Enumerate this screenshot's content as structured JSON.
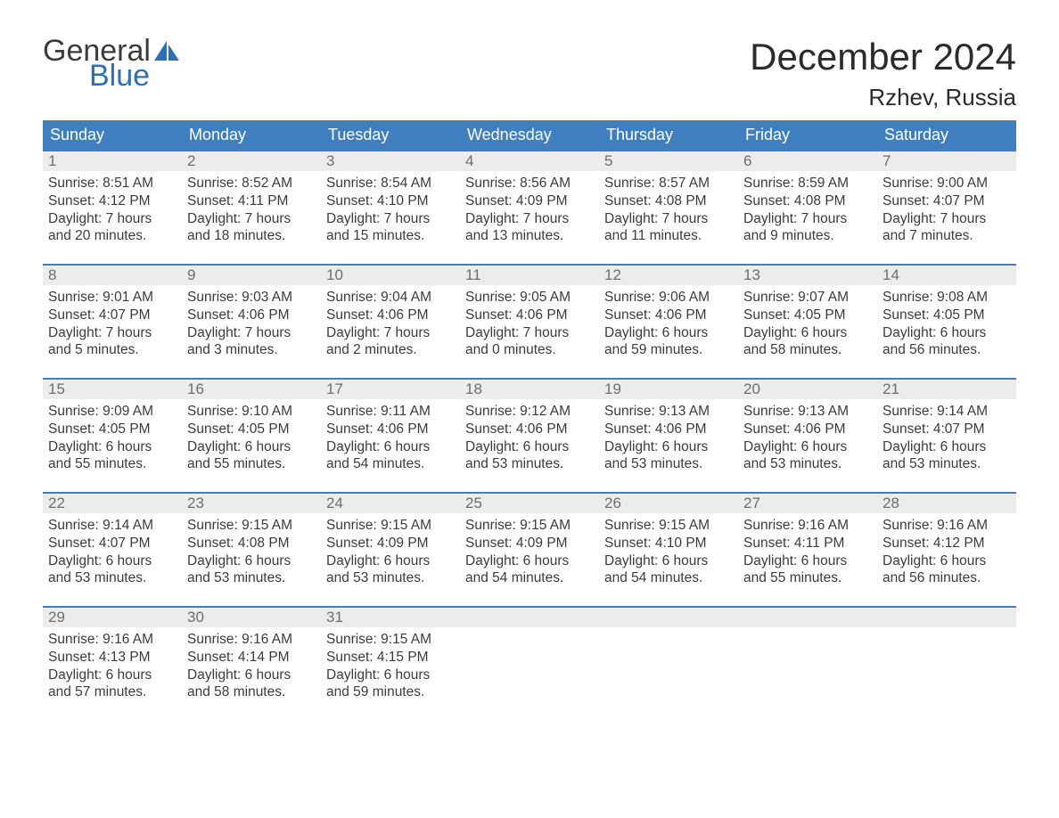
{
  "logo": {
    "general": "General",
    "blue": "Blue"
  },
  "title": "December 2024",
  "location": "Rzhev, Russia",
  "colors": {
    "header_bg": "#3f7fbf",
    "header_text": "#ffffff",
    "daynum_bg": "#ececec",
    "daynum_border": "#3f7fbf",
    "daynum_text": "#6d6d6d",
    "body_text": "#3b3b3b",
    "logo_blue": "#2d6fb5",
    "page_bg": "#ffffff"
  },
  "weekdays": [
    "Sunday",
    "Monday",
    "Tuesday",
    "Wednesday",
    "Thursday",
    "Friday",
    "Saturday"
  ],
  "weeks": [
    [
      {
        "n": "1",
        "sunrise": "Sunrise: 8:51 AM",
        "sunset": "Sunset: 4:12 PM",
        "d1": "Daylight: 7 hours",
        "d2": "and 20 minutes."
      },
      {
        "n": "2",
        "sunrise": "Sunrise: 8:52 AM",
        "sunset": "Sunset: 4:11 PM",
        "d1": "Daylight: 7 hours",
        "d2": "and 18 minutes."
      },
      {
        "n": "3",
        "sunrise": "Sunrise: 8:54 AM",
        "sunset": "Sunset: 4:10 PM",
        "d1": "Daylight: 7 hours",
        "d2": "and 15 minutes."
      },
      {
        "n": "4",
        "sunrise": "Sunrise: 8:56 AM",
        "sunset": "Sunset: 4:09 PM",
        "d1": "Daylight: 7 hours",
        "d2": "and 13 minutes."
      },
      {
        "n": "5",
        "sunrise": "Sunrise: 8:57 AM",
        "sunset": "Sunset: 4:08 PM",
        "d1": "Daylight: 7 hours",
        "d2": "and 11 minutes."
      },
      {
        "n": "6",
        "sunrise": "Sunrise: 8:59 AM",
        "sunset": "Sunset: 4:08 PM",
        "d1": "Daylight: 7 hours",
        "d2": "and 9 minutes."
      },
      {
        "n": "7",
        "sunrise": "Sunrise: 9:00 AM",
        "sunset": "Sunset: 4:07 PM",
        "d1": "Daylight: 7 hours",
        "d2": "and 7 minutes."
      }
    ],
    [
      {
        "n": "8",
        "sunrise": "Sunrise: 9:01 AM",
        "sunset": "Sunset: 4:07 PM",
        "d1": "Daylight: 7 hours",
        "d2": "and 5 minutes."
      },
      {
        "n": "9",
        "sunrise": "Sunrise: 9:03 AM",
        "sunset": "Sunset: 4:06 PM",
        "d1": "Daylight: 7 hours",
        "d2": "and 3 minutes."
      },
      {
        "n": "10",
        "sunrise": "Sunrise: 9:04 AM",
        "sunset": "Sunset: 4:06 PM",
        "d1": "Daylight: 7 hours",
        "d2": "and 2 minutes."
      },
      {
        "n": "11",
        "sunrise": "Sunrise: 9:05 AM",
        "sunset": "Sunset: 4:06 PM",
        "d1": "Daylight: 7 hours",
        "d2": "and 0 minutes."
      },
      {
        "n": "12",
        "sunrise": "Sunrise: 9:06 AM",
        "sunset": "Sunset: 4:06 PM",
        "d1": "Daylight: 6 hours",
        "d2": "and 59 minutes."
      },
      {
        "n": "13",
        "sunrise": "Sunrise: 9:07 AM",
        "sunset": "Sunset: 4:05 PM",
        "d1": "Daylight: 6 hours",
        "d2": "and 58 minutes."
      },
      {
        "n": "14",
        "sunrise": "Sunrise: 9:08 AM",
        "sunset": "Sunset: 4:05 PM",
        "d1": "Daylight: 6 hours",
        "d2": "and 56 minutes."
      }
    ],
    [
      {
        "n": "15",
        "sunrise": "Sunrise: 9:09 AM",
        "sunset": "Sunset: 4:05 PM",
        "d1": "Daylight: 6 hours",
        "d2": "and 55 minutes."
      },
      {
        "n": "16",
        "sunrise": "Sunrise: 9:10 AM",
        "sunset": "Sunset: 4:05 PM",
        "d1": "Daylight: 6 hours",
        "d2": "and 55 minutes."
      },
      {
        "n": "17",
        "sunrise": "Sunrise: 9:11 AM",
        "sunset": "Sunset: 4:06 PM",
        "d1": "Daylight: 6 hours",
        "d2": "and 54 minutes."
      },
      {
        "n": "18",
        "sunrise": "Sunrise: 9:12 AM",
        "sunset": "Sunset: 4:06 PM",
        "d1": "Daylight: 6 hours",
        "d2": "and 53 minutes."
      },
      {
        "n": "19",
        "sunrise": "Sunrise: 9:13 AM",
        "sunset": "Sunset: 4:06 PM",
        "d1": "Daylight: 6 hours",
        "d2": "and 53 minutes."
      },
      {
        "n": "20",
        "sunrise": "Sunrise: 9:13 AM",
        "sunset": "Sunset: 4:06 PM",
        "d1": "Daylight: 6 hours",
        "d2": "and 53 minutes."
      },
      {
        "n": "21",
        "sunrise": "Sunrise: 9:14 AM",
        "sunset": "Sunset: 4:07 PM",
        "d1": "Daylight: 6 hours",
        "d2": "and 53 minutes."
      }
    ],
    [
      {
        "n": "22",
        "sunrise": "Sunrise: 9:14 AM",
        "sunset": "Sunset: 4:07 PM",
        "d1": "Daylight: 6 hours",
        "d2": "and 53 minutes."
      },
      {
        "n": "23",
        "sunrise": "Sunrise: 9:15 AM",
        "sunset": "Sunset: 4:08 PM",
        "d1": "Daylight: 6 hours",
        "d2": "and 53 minutes."
      },
      {
        "n": "24",
        "sunrise": "Sunrise: 9:15 AM",
        "sunset": "Sunset: 4:09 PM",
        "d1": "Daylight: 6 hours",
        "d2": "and 53 minutes."
      },
      {
        "n": "25",
        "sunrise": "Sunrise: 9:15 AM",
        "sunset": "Sunset: 4:09 PM",
        "d1": "Daylight: 6 hours",
        "d2": "and 54 minutes."
      },
      {
        "n": "26",
        "sunrise": "Sunrise: 9:15 AM",
        "sunset": "Sunset: 4:10 PM",
        "d1": "Daylight: 6 hours",
        "d2": "and 54 minutes."
      },
      {
        "n": "27",
        "sunrise": "Sunrise: 9:16 AM",
        "sunset": "Sunset: 4:11 PM",
        "d1": "Daylight: 6 hours",
        "d2": "and 55 minutes."
      },
      {
        "n": "28",
        "sunrise": "Sunrise: 9:16 AM",
        "sunset": "Sunset: 4:12 PM",
        "d1": "Daylight: 6 hours",
        "d2": "and 56 minutes."
      }
    ],
    [
      {
        "n": "29",
        "sunrise": "Sunrise: 9:16 AM",
        "sunset": "Sunset: 4:13 PM",
        "d1": "Daylight: 6 hours",
        "d2": "and 57 minutes."
      },
      {
        "n": "30",
        "sunrise": "Sunrise: 9:16 AM",
        "sunset": "Sunset: 4:14 PM",
        "d1": "Daylight: 6 hours",
        "d2": "and 58 minutes."
      },
      {
        "n": "31",
        "sunrise": "Sunrise: 9:15 AM",
        "sunset": "Sunset: 4:15 PM",
        "d1": "Daylight: 6 hours",
        "d2": "and 59 minutes."
      },
      null,
      null,
      null,
      null
    ]
  ]
}
